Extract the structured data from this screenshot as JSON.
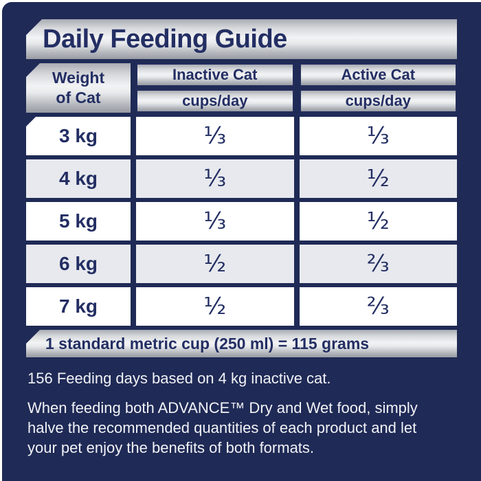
{
  "title": "Daily Feeding Guide",
  "table": {
    "weight_header": {
      "line1": "Weight",
      "line2": "of Cat"
    },
    "columns": [
      {
        "label": "Inactive Cat",
        "sub": "cups/day"
      },
      {
        "label": "Active Cat",
        "sub": "cups/day"
      }
    ],
    "rows": [
      {
        "weight": "3 kg",
        "inactive": "⅓",
        "active": "⅓"
      },
      {
        "weight": "4 kg",
        "inactive": "⅓",
        "active": "½"
      },
      {
        "weight": "5 kg",
        "inactive": "⅓",
        "active": "½"
      },
      {
        "weight": "6 kg",
        "inactive": "½",
        "active": "⅔"
      },
      {
        "weight": "7 kg",
        "inactive": "½",
        "active": "⅔"
      }
    ],
    "footnote": "1 standard metric cup (250 ml) = 115 grams"
  },
  "notes": {
    "feeding_days": "156 Feeding days based on 4 kg inactive cat.",
    "combo_feeding": "When feeding both ADVANCE™ Dry and Wet food, simply halve the recommended quantities of each product and let your pet enjoy the benefits of both formats."
  },
  "colors": {
    "background_navy": "#1f2a56",
    "text_navy": "#232e63",
    "silver_light": "#f2f3f5",
    "silver_dark": "#989ba2",
    "row_white": "#ffffff",
    "row_alt": "#e7e9ee",
    "body_text": "#f1f2f6"
  }
}
